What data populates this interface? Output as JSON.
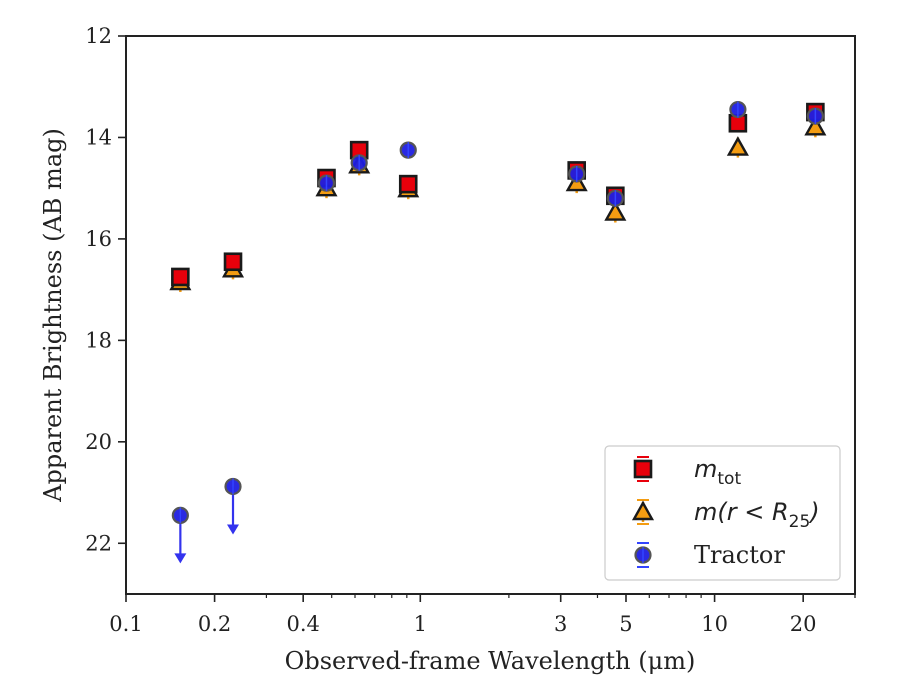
{
  "chart_data": {
    "type": "scatter",
    "xlabel": "Observed-frame Wavelength (μm)",
    "ylabel": "Apparent Brightness (AB mag)",
    "x_scale": "log",
    "y_inverted": true,
    "xlim": [
      0.1,
      30
    ],
    "ylim": [
      23,
      12
    ],
    "x_ticks": [
      {
        "value": 0.1,
        "label": "0.1"
      },
      {
        "value": 0.2,
        "label": "0.2"
      },
      {
        "value": 0.4,
        "label": "0.4"
      },
      {
        "value": 1,
        "label": "1"
      },
      {
        "value": 3,
        "label": "3"
      },
      {
        "value": 5,
        "label": "5"
      },
      {
        "value": 10,
        "label": "10"
      },
      {
        "value": 20,
        "label": "20"
      }
    ],
    "y_ticks": [
      {
        "value": 12,
        "label": "12"
      },
      {
        "value": 14,
        "label": "14"
      },
      {
        "value": 16,
        "label": "16"
      },
      {
        "value": 18,
        "label": "18"
      },
      {
        "value": 20,
        "label": "20"
      },
      {
        "value": 22,
        "label": "22"
      }
    ],
    "grid": false,
    "legend_position": "bottom-right",
    "series": [
      {
        "key": "mtot",
        "legend_main": "m",
        "legend_sub": "tot",
        "marker": "square",
        "color": "#e8000b",
        "edge": "#1a1a1a",
        "points": [
          {
            "x": 0.153,
            "y": 16.75
          },
          {
            "x": 0.231,
            "y": 16.45
          },
          {
            "x": 0.48,
            "y": 14.8
          },
          {
            "x": 0.62,
            "y": 14.25
          },
          {
            "x": 0.91,
            "y": 14.92
          },
          {
            "x": 3.4,
            "y": 14.65
          },
          {
            "x": 4.6,
            "y": 15.15
          },
          {
            "x": 12.0,
            "y": 13.72
          },
          {
            "x": 22.0,
            "y": 13.5
          }
        ]
      },
      {
        "key": "mr25",
        "legend_main": "m(r < R",
        "legend_sub": "25",
        "legend_close": ")",
        "marker": "triangle",
        "color": "#f39c12",
        "edge": "#1a1a1a",
        "points": [
          {
            "x": 0.153,
            "y": 16.85
          },
          {
            "x": 0.231,
            "y": 16.6
          },
          {
            "x": 0.48,
            "y": 15.0
          },
          {
            "x": 0.62,
            "y": 14.55
          },
          {
            "x": 0.91,
            "y": 15.02
          },
          {
            "x": 3.4,
            "y": 14.9
          },
          {
            "x": 4.6,
            "y": 15.48
          },
          {
            "x": 12.0,
            "y": 14.2
          },
          {
            "x": 22.0,
            "y": 13.8
          }
        ]
      },
      {
        "key": "tractor",
        "legend_main": "Tractor",
        "marker": "circle",
        "color": "#1f1fe0",
        "edge": "#555555",
        "points": [
          {
            "x": 0.153,
            "y": 21.45,
            "upper_limit": true
          },
          {
            "x": 0.231,
            "y": 20.88,
            "upper_limit": true
          },
          {
            "x": 0.48,
            "y": 14.9
          },
          {
            "x": 0.62,
            "y": 14.5
          },
          {
            "x": 0.91,
            "y": 14.25
          },
          {
            "x": 3.4,
            "y": 14.72
          },
          {
            "x": 4.6,
            "y": 15.2
          },
          {
            "x": 12.0,
            "y": 13.45
          },
          {
            "x": 22.0,
            "y": 13.58
          }
        ]
      }
    ]
  }
}
